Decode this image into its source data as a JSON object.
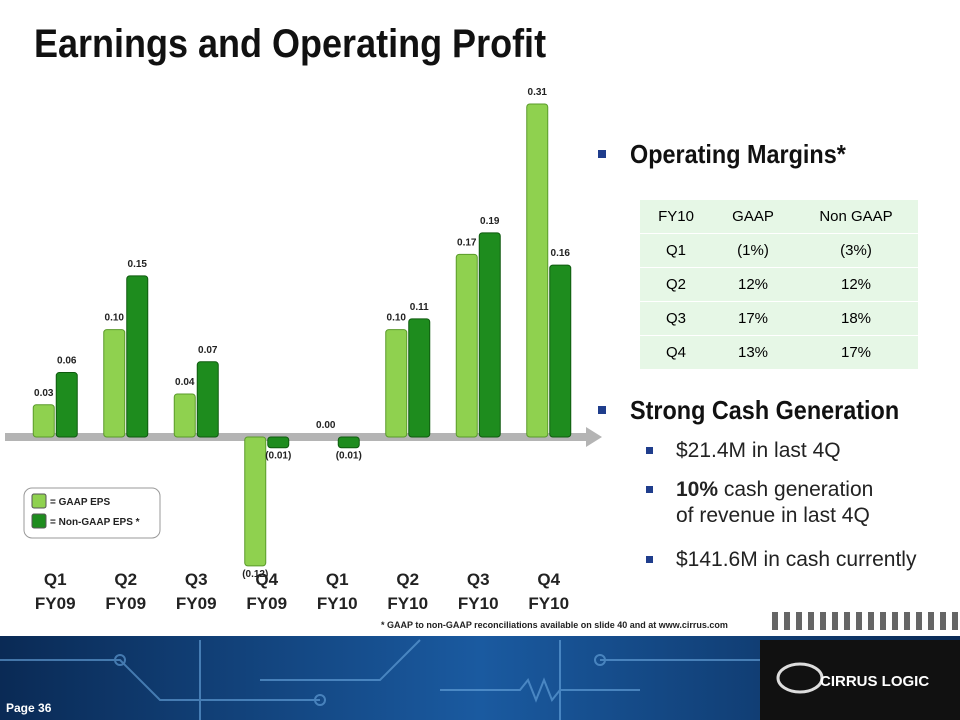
{
  "chart_data": {
    "type": "bar",
    "title": "Earnings and Operating Profit",
    "categories": [
      "Q1 FY09",
      "Q2 FY09",
      "Q3 FY09",
      "Q4 FY09",
      "Q1 FY10",
      "Q2 FY10",
      "Q3 FY10",
      "Q4 FY10"
    ],
    "series": [
      {
        "name": "= GAAP EPS",
        "color": "#8fd14f",
        "values": [
          0.03,
          0.1,
          0.04,
          -0.12,
          0.0,
          0.1,
          0.17,
          0.31
        ],
        "value_labels": [
          "0.03",
          "0.10",
          "0.04",
          "(0.12)",
          "0.00",
          "0.10",
          "0.17",
          "0.31"
        ]
      },
      {
        "name": "= Non-GAAP EPS *",
        "color": "#1e8c1e",
        "values": [
          0.06,
          0.15,
          0.07,
          -0.01,
          -0.01,
          0.11,
          0.19,
          0.16
        ],
        "value_labels": [
          "0.06",
          "0.15",
          "0.07",
          "(0.01)",
          "(0.01)",
          "0.11",
          "0.19",
          "0.16"
        ]
      }
    ],
    "footnote": "* GAAP to non-GAAP reconciliations available on slide 40 and at www.cirrus.com"
  },
  "operating_margins": {
    "heading": "Operating Margins*",
    "table": {
      "header": [
        "FY10",
        "GAAP",
        "Non GAAP"
      ],
      "rows": [
        [
          "Q1",
          "(1%)",
          "(3%)"
        ],
        [
          "Q2",
          "12%",
          "12%"
        ],
        [
          "Q3",
          "17%",
          "18%"
        ],
        [
          "Q4",
          "13%",
          "17%"
        ]
      ]
    }
  },
  "cash": {
    "heading": "Strong Cash Generation",
    "items": [
      {
        "text": "$21.4M in last 4Q"
      },
      {
        "bold": "10%",
        "text": " cash generation",
        "continuation": "of revenue in last 4Q"
      },
      {
        "text": "$141.6M in cash currently"
      }
    ]
  },
  "footer": {
    "page": "Page 36",
    "logo": "CIRRUS LOGIC"
  }
}
